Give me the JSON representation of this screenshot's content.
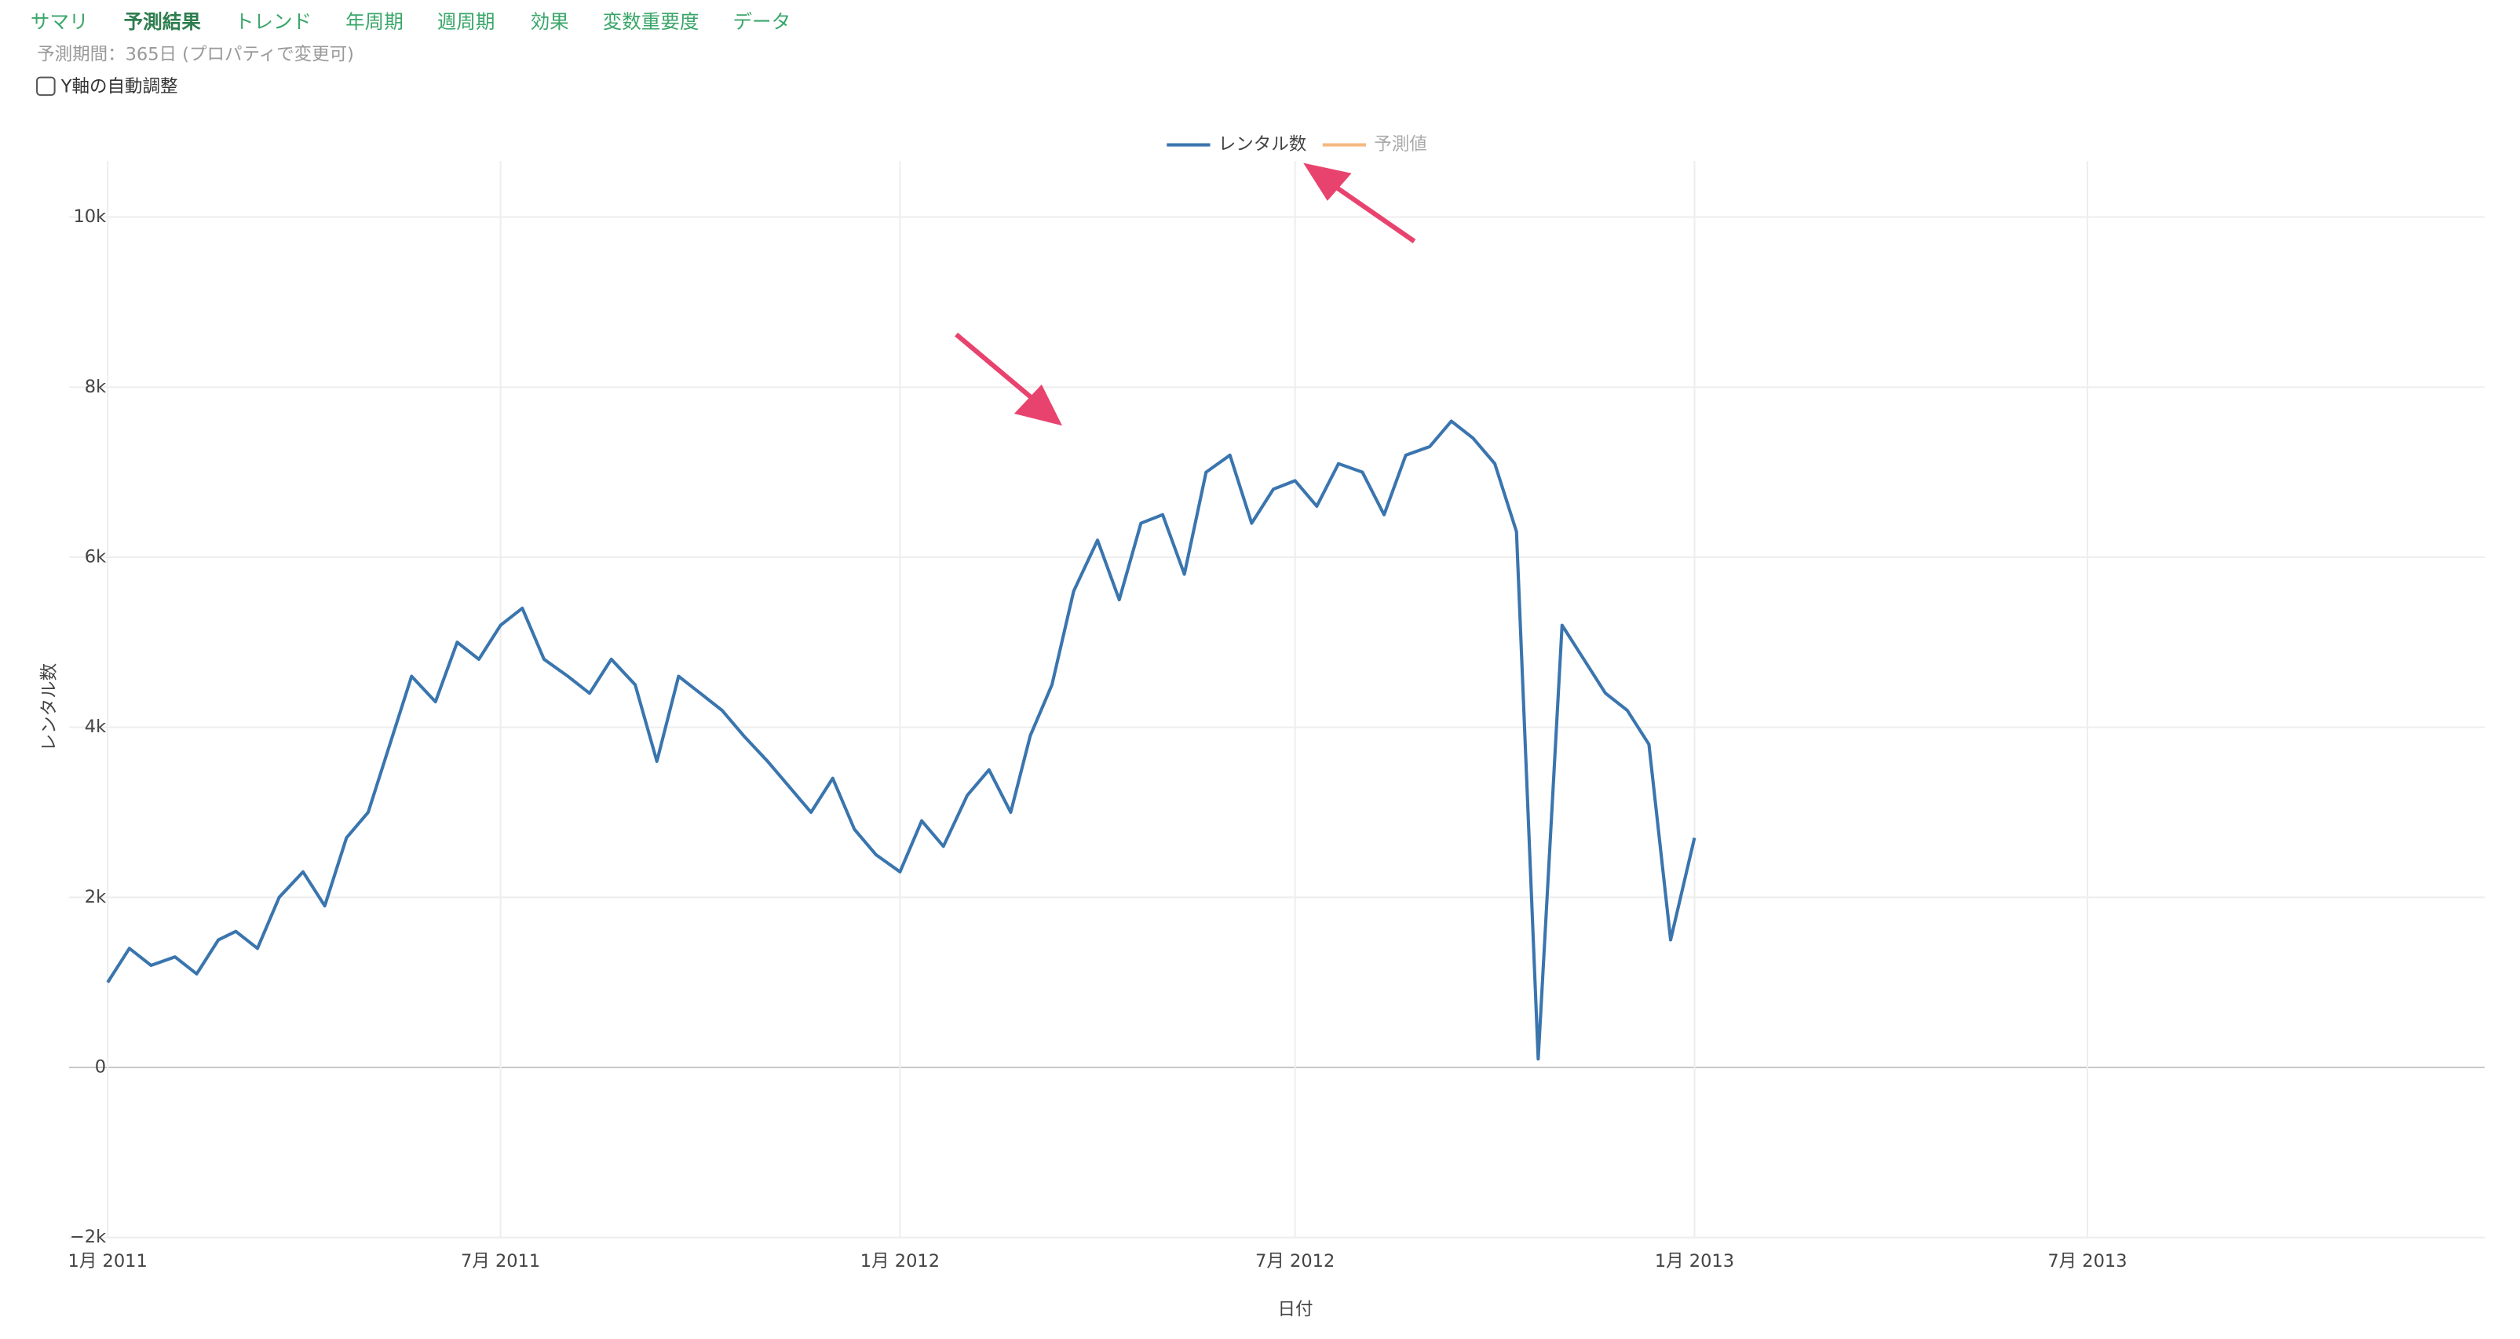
{
  "nav": {
    "tabs": [
      "サマリ",
      "予測結果",
      "トレンド",
      "年周期",
      "週周期",
      "効果",
      "変数重要度",
      "データ"
    ],
    "active": 1
  },
  "settings": {
    "period_note": "予測期間：365日 (プロパティで変更可)",
    "checkbox_label": "Y軸の自動調整"
  },
  "chart_data": {
    "type": "line",
    "x_label": "日付",
    "y_label": "レンタル数",
    "grid": true,
    "legend": "top",
    "x": [
      "2011-01-01",
      "2011-01-11",
      "2011-01-21",
      "2011-02-01",
      "2011-02-11",
      "2011-02-21",
      "2011-03-01",
      "2011-03-11",
      "2011-03-21",
      "2011-04-01",
      "2011-04-11",
      "2011-04-21",
      "2011-05-01",
      "2011-05-11",
      "2011-05-21",
      "2011-06-01",
      "2011-06-11",
      "2011-06-21",
      "2011-07-01",
      "2011-07-11",
      "2011-07-21",
      "2011-08-01",
      "2011-08-11",
      "2011-08-21",
      "2011-09-01",
      "2011-09-11",
      "2011-09-21",
      "2011-10-01",
      "2011-10-11",
      "2011-10-21",
      "2011-11-01",
      "2011-11-11",
      "2011-11-21",
      "2011-12-01",
      "2011-12-11",
      "2011-12-21",
      "2012-01-01",
      "2012-01-11",
      "2012-01-21",
      "2012-02-01",
      "2012-02-11",
      "2012-02-21",
      "2012-03-01",
      "2012-03-11",
      "2012-03-21",
      "2012-04-01",
      "2012-04-11",
      "2012-04-21",
      "2012-05-01",
      "2012-05-11",
      "2012-05-21",
      "2012-06-01",
      "2012-06-11",
      "2012-06-21",
      "2012-07-01",
      "2012-07-11",
      "2012-07-21",
      "2012-08-01",
      "2012-08-11",
      "2012-08-21",
      "2012-09-01",
      "2012-09-11",
      "2012-09-21",
      "2012-10-01",
      "2012-10-11",
      "2012-10-21",
      "2012-11-01",
      "2012-11-11",
      "2012-11-21",
      "2012-12-01",
      "2012-12-11",
      "2012-12-21",
      "2013-01-01"
    ],
    "series": [
      {
        "name": "レンタル数",
        "color": "#3a75ae",
        "values": [
          1000,
          1400,
          1200,
          1300,
          1100,
          1500,
          1600,
          1400,
          2000,
          2300,
          1900,
          2700,
          3000,
          3800,
          4600,
          4300,
          5000,
          4800,
          5200,
          5400,
          4800,
          4600,
          4400,
          4800,
          4500,
          3600,
          4600,
          4400,
          4200,
          3900,
          3600,
          3300,
          3000,
          3400,
          2800,
          2500,
          2300,
          2900,
          2600,
          3200,
          3500,
          3000,
          3900,
          4500,
          5600,
          6200,
          5500,
          6400,
          6500,
          5800,
          7000,
          7200,
          6400,
          6800,
          6900,
          6600,
          7100,
          7000,
          6500,
          7200,
          7300,
          7600,
          7400,
          7100,
          6300,
          100,
          5200,
          4800,
          4400,
          4200,
          3800,
          1500,
          2700
        ]
      },
      {
        "name": "予測値",
        "color": "#f5b880",
        "values": [
          null,
          null,
          null,
          null,
          null,
          null,
          null,
          null,
          null,
          null,
          null,
          null,
          null,
          null,
          null,
          null,
          null,
          null,
          null,
          null,
          null,
          null,
          null,
          null,
          null,
          null,
          null,
          null,
          null,
          null,
          null,
          null,
          null,
          null,
          null,
          null,
          null,
          null,
          null,
          null,
          null,
          null,
          null,
          null,
          null,
          null,
          null,
          null,
          null,
          null,
          null,
          null,
          null,
          null,
          null,
          null,
          null,
          null,
          null,
          null,
          null,
          null,
          null,
          null,
          null,
          null,
          null,
          null,
          null,
          null,
          null,
          null,
          null
        ]
      }
    ],
    "xlim": [
      "2011-01-01",
      "2013-12-31"
    ],
    "xticks": [
      {
        "value": "2011-01-01",
        "label": "1月 2011"
      },
      {
        "value": "2011-07-01",
        "label": "7月 2011"
      },
      {
        "value": "2012-01-01",
        "label": "1月 2012"
      },
      {
        "value": "2012-07-01",
        "label": "7月 2012"
      },
      {
        "value": "2013-01-01",
        "label": "1月 2013"
      },
      {
        "value": "2013-07-01",
        "label": "7月 2013"
      }
    ],
    "ylim": [
      -2000,
      10660
    ],
    "yticks": [
      {
        "value": -2000,
        "label": "−2k"
      },
      0,
      {
        "value": 2000,
        "label": "2k"
      },
      {
        "value": 4000,
        "label": "4k"
      },
      {
        "value": 6000,
        "label": "6k"
      },
      {
        "value": 8000,
        "label": "8k"
      },
      {
        "value": 10000,
        "label": "10k"
      }
    ]
  }
}
